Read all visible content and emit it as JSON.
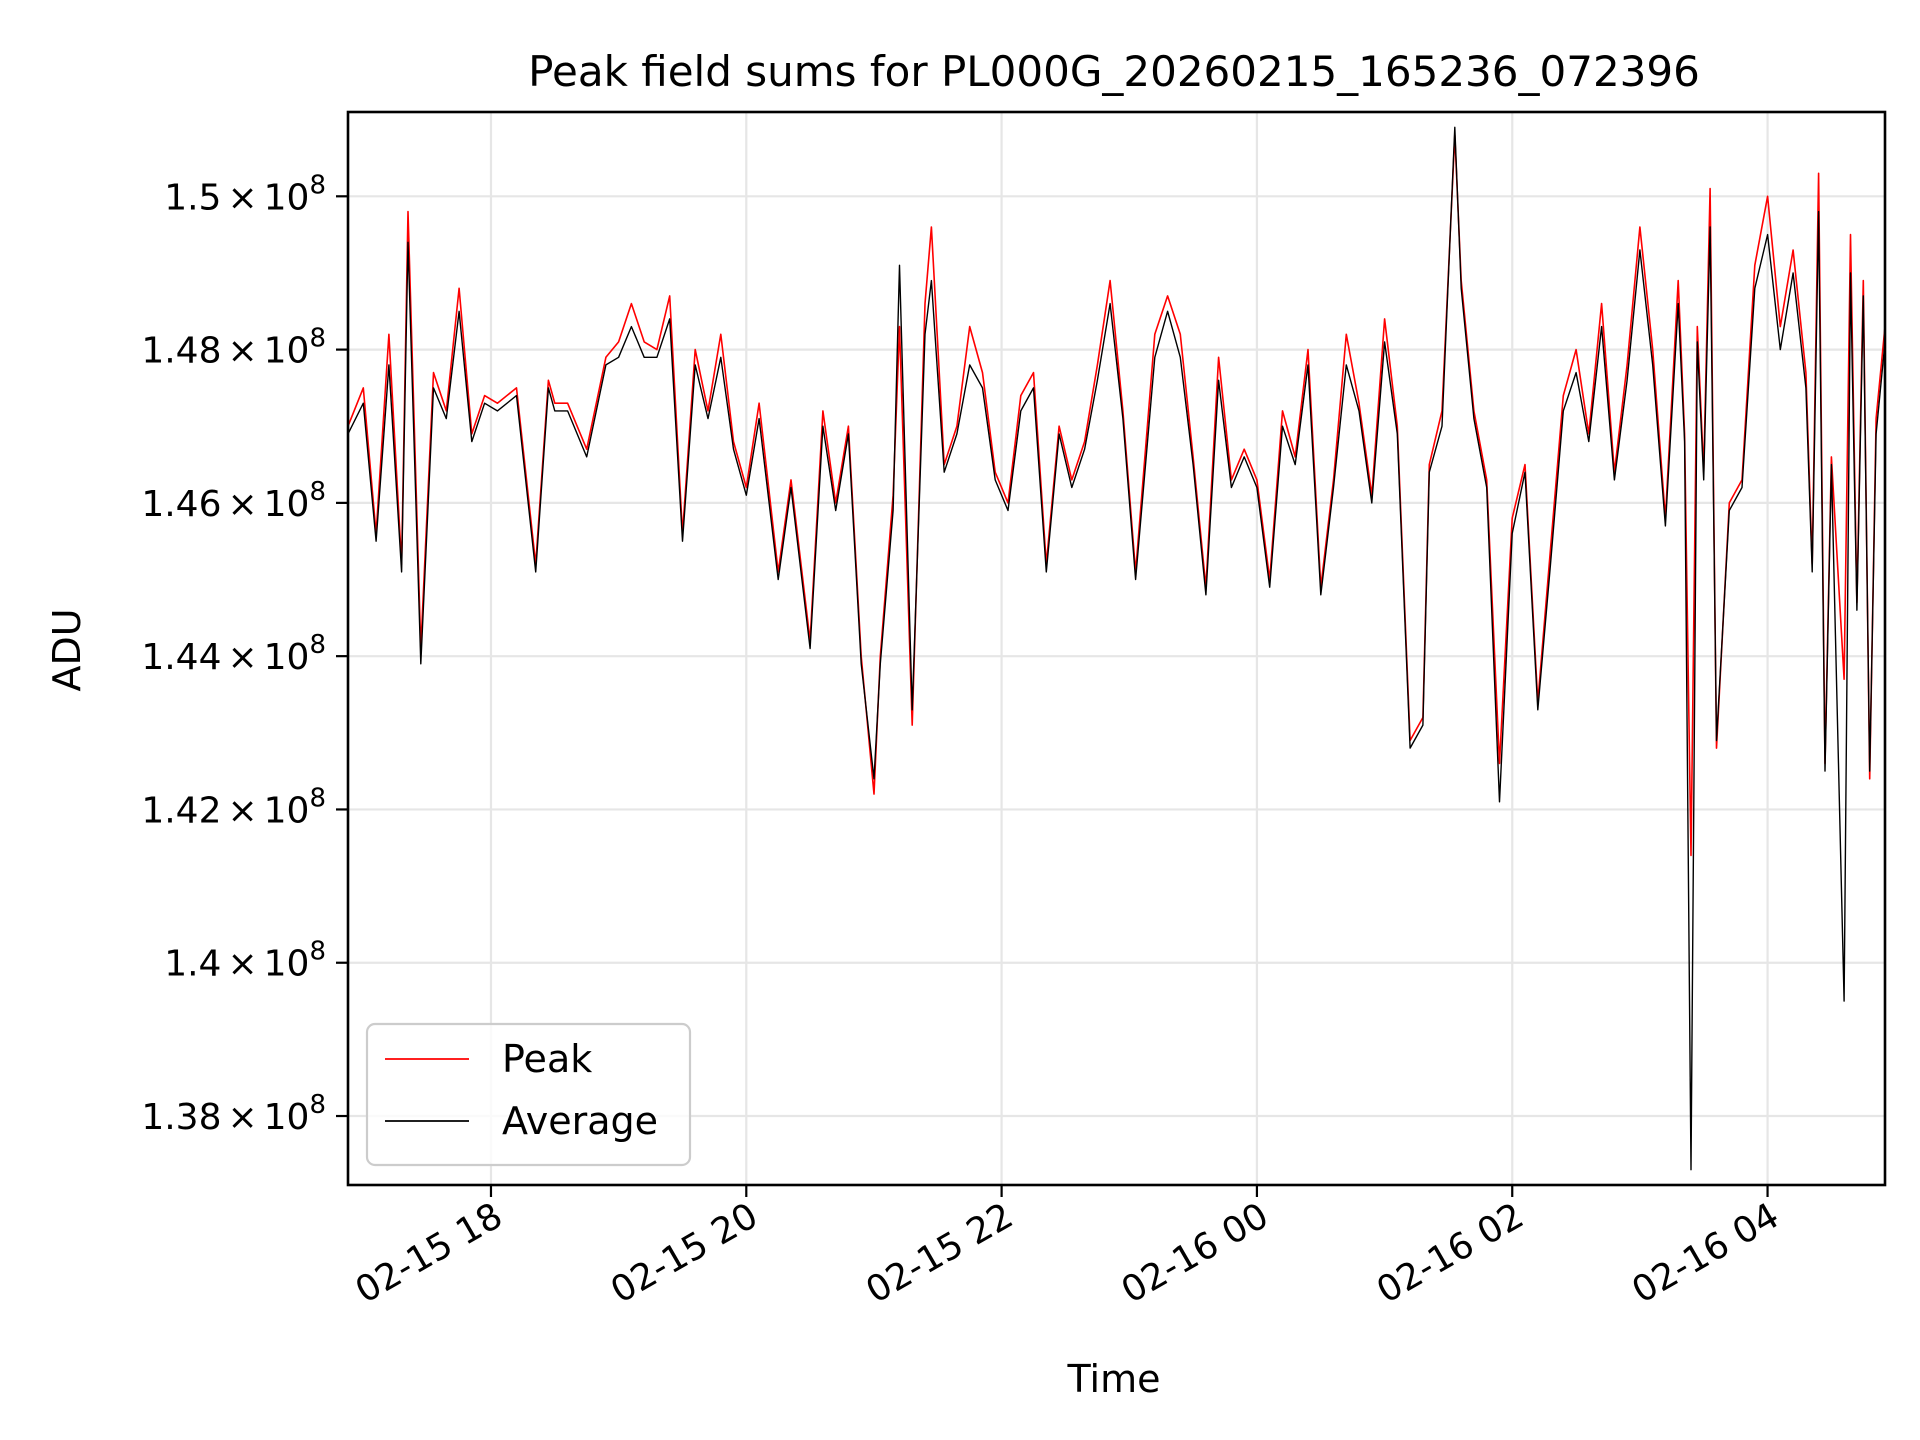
{
  "chart_data": {
    "type": "line",
    "title": "Peak field sums for PL000G_20260215_165236_072396",
    "xlabel": "Time",
    "ylabel": "ADU",
    "grid": true,
    "legend_position": "lower-left",
    "x_unit": "hours since 2026-02-15 00:00",
    "xlim": [
      16.88,
      28.92
    ],
    "ylim": [
      137100000,
      151100000
    ],
    "x_ticks": [
      {
        "value": 18,
        "label": "02-15 18"
      },
      {
        "value": 20,
        "label": "02-15 20"
      },
      {
        "value": 22,
        "label": "02-15 22"
      },
      {
        "value": 24,
        "label": "02-16 00"
      },
      {
        "value": 26,
        "label": "02-16 02"
      },
      {
        "value": 28,
        "label": "02-16 04"
      }
    ],
    "y_ticks": [
      {
        "value": 138000000,
        "label_mantissa": "1.38",
        "label_times": "×",
        "label_base": "10",
        "label_exp": "8"
      },
      {
        "value": 140000000,
        "label_mantissa": "1.4",
        "label_times": "×",
        "label_base": "10",
        "label_exp": "8"
      },
      {
        "value": 142000000,
        "label_mantissa": "1.42",
        "label_times": "×",
        "label_base": "10",
        "label_exp": "8"
      },
      {
        "value": 144000000,
        "label_mantissa": "1.44",
        "label_times": "×",
        "label_base": "10",
        "label_exp": "8"
      },
      {
        "value": 146000000,
        "label_mantissa": "1.46",
        "label_times": "×",
        "label_base": "10",
        "label_exp": "8"
      },
      {
        "value": 148000000,
        "label_mantissa": "1.48",
        "label_times": "×",
        "label_base": "10",
        "label_exp": "8"
      },
      {
        "value": 150000000,
        "label_mantissa": "1.5",
        "label_times": "×",
        "label_base": "10",
        "label_exp": "8"
      }
    ],
    "series": [
      {
        "name": "Peak",
        "color": "#ff0000",
        "x": [
          16.88,
          17.0,
          17.1,
          17.2,
          17.3,
          17.35,
          17.45,
          17.55,
          17.65,
          17.75,
          17.85,
          17.95,
          18.05,
          18.2,
          18.35,
          18.45,
          18.5,
          18.6,
          18.75,
          18.9,
          19.0,
          19.1,
          19.2,
          19.3,
          19.4,
          19.5,
          19.6,
          19.7,
          19.8,
          19.9,
          20.0,
          20.1,
          20.25,
          20.35,
          20.5,
          20.6,
          20.7,
          20.8,
          20.9,
          21.0,
          21.05,
          21.15,
          21.2,
          21.3,
          21.4,
          21.45,
          21.55,
          21.65,
          21.75,
          21.85,
          21.95,
          22.05,
          22.15,
          22.25,
          22.35,
          22.45,
          22.55,
          22.65,
          22.75,
          22.85,
          22.95,
          23.05,
          23.2,
          23.3,
          23.4,
          23.5,
          23.6,
          23.7,
          23.8,
          23.9,
          24.0,
          24.1,
          24.2,
          24.3,
          24.4,
          24.5,
          24.6,
          24.7,
          24.8,
          24.9,
          25.0,
          25.1,
          25.2,
          25.3,
          25.35,
          25.45,
          25.55,
          25.6,
          25.7,
          25.8,
          25.9,
          26.0,
          26.1,
          26.2,
          26.3,
          26.4,
          26.5,
          26.6,
          26.7,
          26.8,
          26.9,
          27.0,
          27.1,
          27.2,
          27.3,
          27.35,
          27.4,
          27.45,
          27.5,
          27.55,
          27.6,
          27.7,
          27.8,
          27.9,
          28.0,
          28.1,
          28.2,
          28.3,
          28.35,
          28.4,
          28.45,
          28.5,
          28.6,
          28.65,
          28.7,
          28.75,
          28.8,
          28.85,
          28.92
        ],
        "values": [
          147000000,
          147500000,
          145600000,
          148200000,
          145200000,
          149800000,
          144100000,
          147700000,
          147200000,
          148800000,
          146900000,
          147400000,
          147300000,
          147500000,
          145200000,
          147600000,
          147300000,
          147300000,
          146700000,
          147900000,
          148100000,
          148600000,
          148100000,
          148000000,
          148700000,
          145600000,
          148000000,
          147200000,
          148200000,
          146800000,
          146200000,
          147300000,
          145100000,
          146300000,
          144200000,
          147200000,
          146000000,
          147000000,
          144000000,
          142200000,
          144000000,
          146100000,
          148300000,
          143100000,
          148600000,
          149600000,
          146500000,
          147000000,
          148300000,
          147700000,
          146400000,
          146000000,
          147400000,
          147700000,
          145200000,
          147000000,
          146300000,
          146800000,
          147800000,
          148900000,
          147200000,
          145100000,
          148200000,
          148700000,
          148200000,
          146600000,
          144900000,
          147900000,
          146300000,
          146700000,
          146300000,
          145000000,
          147200000,
          146600000,
          148000000,
          144900000,
          146300000,
          148200000,
          147300000,
          146100000,
          148400000,
          147000000,
          142900000,
          143200000,
          146500000,
          147200000,
          150800000,
          148900000,
          147200000,
          146300000,
          142600000,
          145800000,
          146500000,
          143400000,
          145400000,
          147400000,
          148000000,
          146900000,
          148600000,
          146400000,
          147800000,
          149600000,
          148000000,
          145800000,
          148900000,
          146900000,
          141400000,
          148300000,
          146400000,
          150100000,
          142800000,
          146000000,
          146300000,
          149100000,
          150000000,
          148300000,
          149300000,
          147700000,
          145200000,
          150300000,
          142600000,
          146600000,
          143700000,
          149500000,
          144700000,
          148900000,
          142400000,
          147100000,
          148300000
        ]
      },
      {
        "name": "Average",
        "color": "#000000",
        "x": [
          16.88,
          17.0,
          17.1,
          17.2,
          17.3,
          17.35,
          17.45,
          17.55,
          17.65,
          17.75,
          17.85,
          17.95,
          18.05,
          18.2,
          18.35,
          18.45,
          18.5,
          18.6,
          18.75,
          18.9,
          19.0,
          19.1,
          19.2,
          19.3,
          19.4,
          19.5,
          19.6,
          19.7,
          19.8,
          19.9,
          20.0,
          20.1,
          20.25,
          20.35,
          20.5,
          20.6,
          20.7,
          20.8,
          20.9,
          21.0,
          21.05,
          21.15,
          21.2,
          21.3,
          21.4,
          21.45,
          21.55,
          21.65,
          21.75,
          21.85,
          21.95,
          22.05,
          22.15,
          22.25,
          22.35,
          22.45,
          22.55,
          22.65,
          22.75,
          22.85,
          22.95,
          23.05,
          23.2,
          23.3,
          23.4,
          23.5,
          23.6,
          23.7,
          23.8,
          23.9,
          24.0,
          24.1,
          24.2,
          24.3,
          24.4,
          24.5,
          24.6,
          24.7,
          24.8,
          24.9,
          25.0,
          25.1,
          25.2,
          25.3,
          25.35,
          25.45,
          25.55,
          25.6,
          25.7,
          25.8,
          25.9,
          26.0,
          26.1,
          26.2,
          26.3,
          26.4,
          26.5,
          26.6,
          26.7,
          26.8,
          26.9,
          27.0,
          27.1,
          27.2,
          27.3,
          27.35,
          27.4,
          27.45,
          27.5,
          27.55,
          27.6,
          27.7,
          27.8,
          27.9,
          28.0,
          28.1,
          28.2,
          28.3,
          28.35,
          28.4,
          28.45,
          28.5,
          28.6,
          28.65,
          28.7,
          28.75,
          28.8,
          28.85,
          28.92
        ],
        "values": [
          146900000,
          147300000,
          145500000,
          147800000,
          145100000,
          149400000,
          143900000,
          147500000,
          147100000,
          148500000,
          146800000,
          147300000,
          147200000,
          147400000,
          145100000,
          147500000,
          147200000,
          147200000,
          146600000,
          147800000,
          147900000,
          148300000,
          147900000,
          147900000,
          148400000,
          145500000,
          147800000,
          147100000,
          147900000,
          146700000,
          146100000,
          147100000,
          145000000,
          146200000,
          144100000,
          147000000,
          145900000,
          146900000,
          143900000,
          142400000,
          143900000,
          145900000,
          149100000,
          143300000,
          148200000,
          148900000,
          146400000,
          146900000,
          147800000,
          147500000,
          146300000,
          145900000,
          147200000,
          147500000,
          145100000,
          146900000,
          146200000,
          146700000,
          147600000,
          148600000,
          147100000,
          145000000,
          147900000,
          148500000,
          147900000,
          146500000,
          144800000,
          147600000,
          146200000,
          146600000,
          146200000,
          144900000,
          147000000,
          146500000,
          147800000,
          144800000,
          146200000,
          147800000,
          147200000,
          146000000,
          148100000,
          146900000,
          142800000,
          143100000,
          146400000,
          147000000,
          150900000,
          148800000,
          147100000,
          146200000,
          142100000,
          145600000,
          146400000,
          143300000,
          145200000,
          147200000,
          147700000,
          146800000,
          148300000,
          146300000,
          147600000,
          149300000,
          147800000,
          145700000,
          148600000,
          146800000,
          137300000,
          148100000,
          146300000,
          149600000,
          142900000,
          145900000,
          146200000,
          148800000,
          149500000,
          148000000,
          149000000,
          147500000,
          145100000,
          149800000,
          142500000,
          146500000,
          139500000,
          149000000,
          144600000,
          148700000,
          142500000,
          146900000,
          148100000
        ]
      }
    ]
  }
}
